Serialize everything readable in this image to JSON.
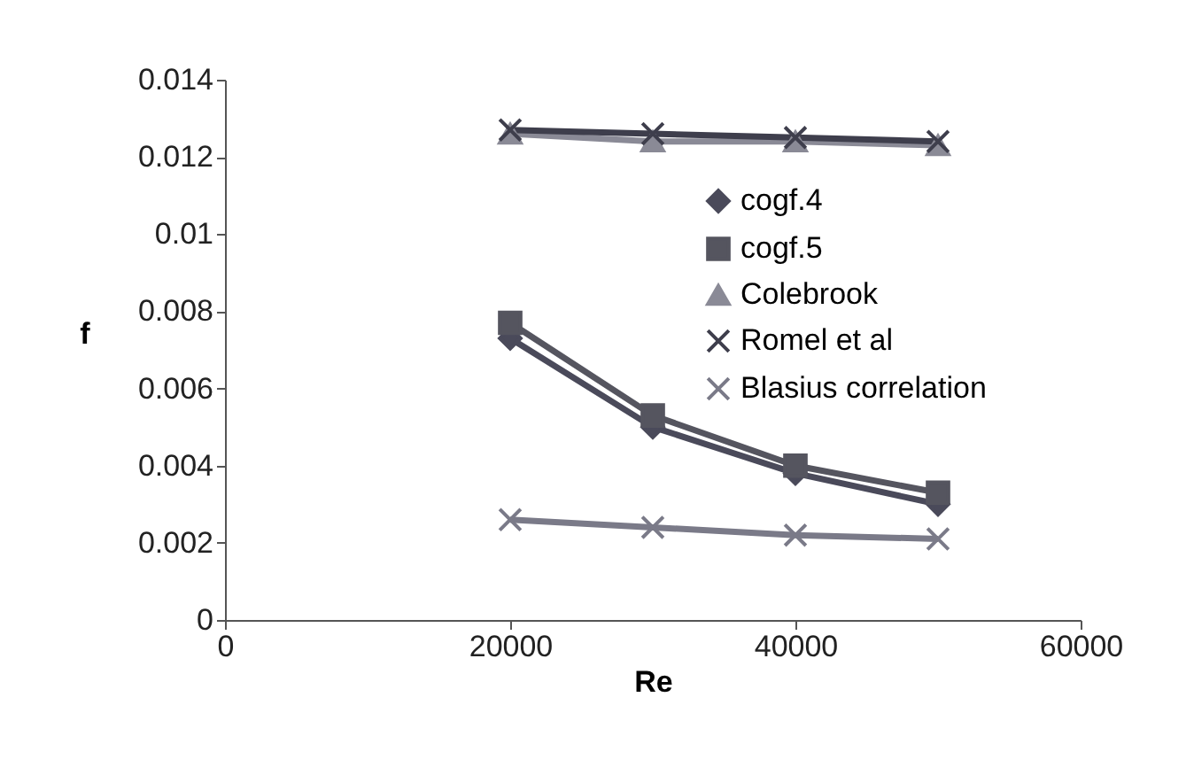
{
  "chart_data": {
    "type": "line",
    "xlabel": "Re",
    "ylabel": "f",
    "x": [
      20000,
      30000,
      40000,
      50000
    ],
    "xlim": [
      0,
      60000
    ],
    "xticks": [
      0,
      20000,
      40000,
      60000
    ],
    "ylim": [
      0,
      0.014
    ],
    "yticks": [
      0,
      0.002,
      0.004,
      0.006,
      0.008,
      0.01,
      0.012,
      0.014
    ],
    "grid": false,
    "legend": "right",
    "line_style": "solid",
    "series": [
      {
        "name": "cogf.4",
        "color": "#4a4a5a",
        "marker": "diamond",
        "values": [
          0.0073,
          0.005,
          0.0038,
          0.003
        ]
      },
      {
        "name": "cogf.5",
        "color": "#55555f",
        "marker": "square",
        "values": [
          0.0077,
          0.0053,
          0.004,
          0.0033
        ]
      },
      {
        "name": "Colebrook",
        "color": "#8a8a96",
        "marker": "triangle",
        "values": [
          0.0126,
          0.0124,
          0.0124,
          0.0123
        ]
      },
      {
        "name": "Romel et al",
        "color": "#3e3e4c",
        "marker": "cross",
        "values": [
          0.0127,
          0.0126,
          0.0125,
          0.0124
        ]
      },
      {
        "name": "Blasius correlation",
        "color": "#7a7a88",
        "marker": "cross",
        "values": [
          0.0026,
          0.0024,
          0.0022,
          0.0021
        ]
      }
    ]
  }
}
